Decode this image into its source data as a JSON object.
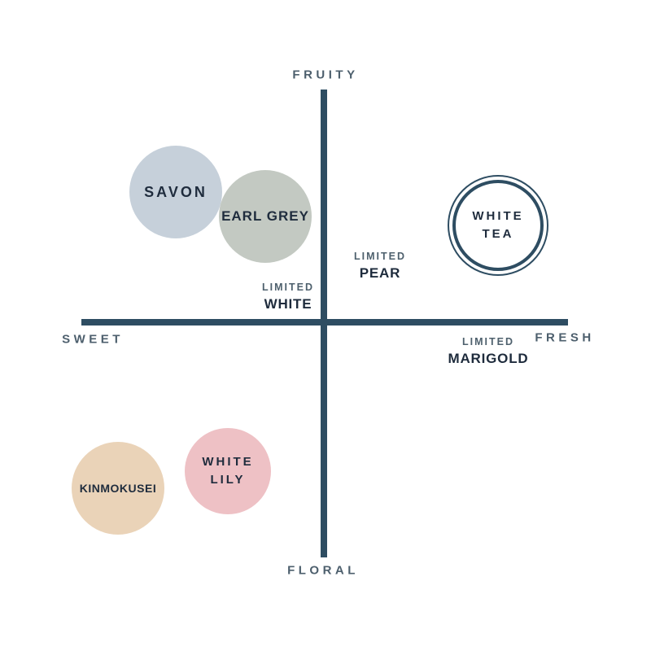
{
  "colors": {
    "background": "#ffffff",
    "axis": "#2e4d62",
    "axis_label_text": "#4d5f6d",
    "limited_prefix_text": "#4e606d",
    "name_text": "#1f2c3d"
  },
  "chart_data": {
    "type": "scatter",
    "title": "",
    "x_axis": {
      "negative_label": "SWEET",
      "positive_label": "FRESH",
      "range": [
        -1,
        1
      ]
    },
    "y_axis": {
      "negative_label": "FLORAL",
      "positive_label": "FRUITY",
      "range": [
        -1,
        1
      ]
    },
    "grid": false,
    "legend": false,
    "points": [
      {
        "label": "SAVON",
        "label_lines": [
          "SAVON"
        ],
        "x": -0.6,
        "y": 0.55,
        "marker": "filled-circle",
        "color": "#c6d0da"
      },
      {
        "label": "EARL GREY",
        "label_lines": [
          "EARL GREY"
        ],
        "x": -0.24,
        "y": 0.45,
        "marker": "filled-circle",
        "color": "#c3c9c2"
      },
      {
        "label": "WHITE TEA",
        "label_lines": [
          "WHITE",
          "TEA"
        ],
        "x": 0.71,
        "y": 0.42,
        "marker": "double-ring-outline-circle",
        "color": "#ffffff",
        "ring_color": "#2e4d62"
      },
      {
        "label": "LIMITED WHITE",
        "prefix": "LIMITED",
        "name": "WHITE",
        "x": -0.14,
        "y": 0.1,
        "marker": "text-only"
      },
      {
        "label": "LIMITED PEAR",
        "prefix": "LIMITED",
        "name": "PEAR",
        "x": 0.23,
        "y": 0.24,
        "marker": "text-only"
      },
      {
        "label": "LIMITED MARIGOLD",
        "prefix": "LIMITED",
        "name": "MARIGOLD",
        "x": 0.67,
        "y": -0.13,
        "marker": "text-only"
      },
      {
        "label": "KINMOKUSEI",
        "label_lines": [
          "KINMOKUSEI"
        ],
        "x": -0.84,
        "y": -0.71,
        "marker": "filled-circle",
        "color": "#ead3b8"
      },
      {
        "label": "WHITE LILY",
        "label_lines": [
          "WHITE",
          "LILY"
        ],
        "x": -0.39,
        "y": -0.64,
        "marker": "filled-circle",
        "color": "#eec1c5"
      }
    ]
  }
}
